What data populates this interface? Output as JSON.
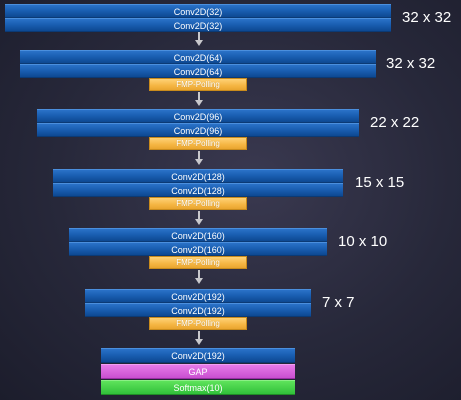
{
  "stages": [
    {
      "layers": [
        "Conv2D(32)",
        "Conv2D(32)"
      ],
      "pool": "",
      "size": "32 x 32"
    },
    {
      "layers": [
        "Conv2D(64)",
        "Conv2D(64)"
      ],
      "pool": "FMP-Polling",
      "size": "32 x 32"
    },
    {
      "layers": [
        "Conv2D(96)",
        "Conv2D(96)"
      ],
      "pool": "FMP-Polling",
      "size": "22 x 22"
    },
    {
      "layers": [
        "Conv2D(128)",
        "Conv2D(128)"
      ],
      "pool": "FMP-Polling",
      "size": "15 x 15"
    },
    {
      "layers": [
        "Conv2D(160)",
        "Conv2D(160)"
      ],
      "pool": "FMP-Polling",
      "size": "10 x 10"
    },
    {
      "layers": [
        "Conv2D(192)",
        "Conv2D(192)"
      ],
      "pool": "FMP-Polling",
      "size": "7 x 7"
    }
  ],
  "head": {
    "conv": "Conv2D(192)",
    "gap": "GAP",
    "softmax": "Softmax(10)"
  },
  "colors": {
    "conv": "#1a5fb3",
    "pool": "#f5b643",
    "gap": "#c94fd0",
    "softmax": "#31c03a",
    "background": "#27283a"
  }
}
